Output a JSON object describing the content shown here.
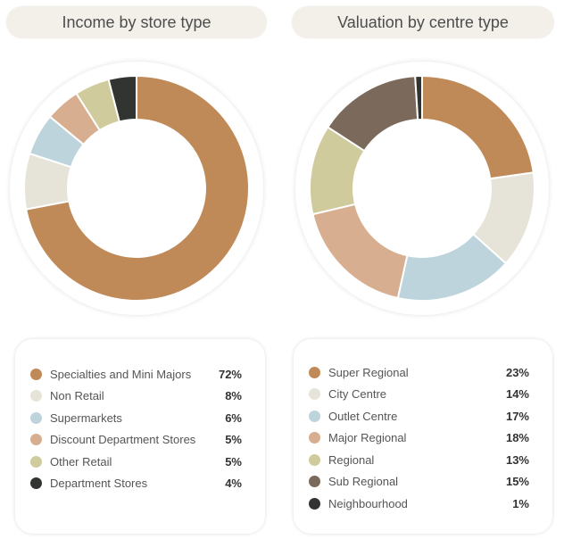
{
  "chart_data": [
    {
      "type": "pie",
      "title": "Income by store type",
      "categories": [
        "Specialties and Mini Majors",
        "Non Retail",
        "Supermarkets",
        "Discount Department Stores",
        "Other Retail",
        "Department Stores"
      ],
      "values": [
        72,
        8,
        6,
        5,
        5,
        4
      ],
      "value_labels": [
        "72%",
        "8%",
        "6%",
        "5%",
        "5%",
        "4%"
      ],
      "colors": [
        "#bf8a58",
        "#e6e4d8",
        "#bdd4dc",
        "#d8ae90",
        "#cfcb9d",
        "#323431"
      ],
      "legend_position": "bottom"
    },
    {
      "type": "pie",
      "title": "Valuation by centre type",
      "categories": [
        "Super Regional",
        "City Centre",
        "Outlet Centre",
        "Major Regional",
        "Regional",
        "Sub Regional",
        "Neighbourhood"
      ],
      "values": [
        23,
        14,
        17,
        18,
        13,
        15,
        1
      ],
      "value_labels": [
        "23%",
        "14%",
        "17%",
        "18%",
        "13%",
        "15%",
        "1%"
      ],
      "colors": [
        "#bf8a58",
        "#e6e4d8",
        "#bdd4dc",
        "#d8ae90",
        "#cfcb9d",
        "#7b6a5c",
        "#323431"
      ],
      "legend_position": "bottom"
    }
  ]
}
